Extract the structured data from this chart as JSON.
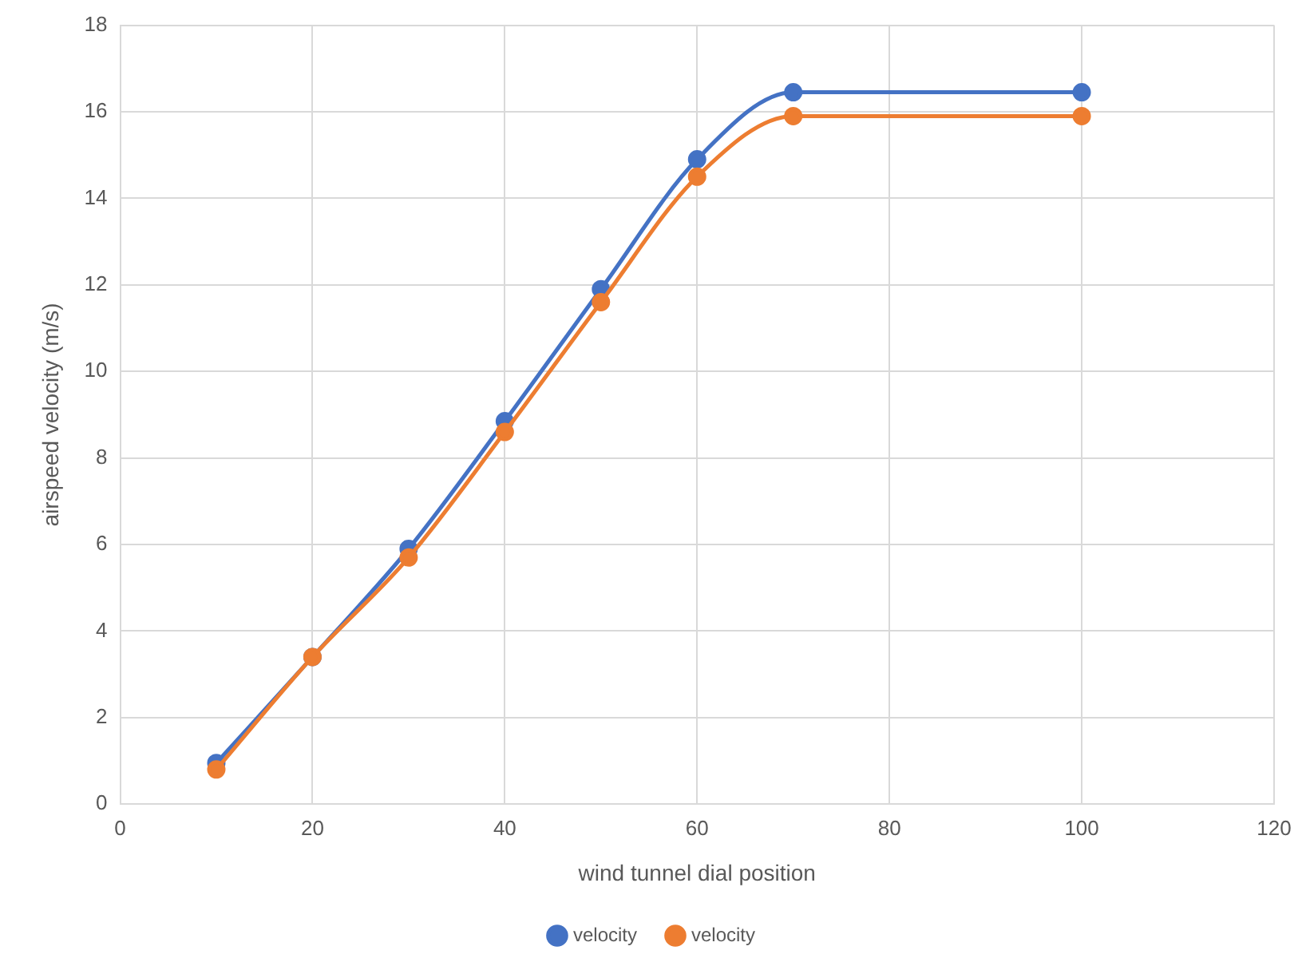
{
  "chart_data": {
    "type": "line",
    "xlabel": "wind tunnel dial position",
    "ylabel": "airspeed velocity (m/s)",
    "x": [
      10,
      20,
      30,
      40,
      50,
      60,
      70,
      100
    ],
    "series": [
      {
        "name": "velocity",
        "color": "#4472c4",
        "values": [
          0.95,
          3.4,
          5.9,
          8.85,
          11.9,
          14.9,
          16.45,
          16.45
        ]
      },
      {
        "name": "velocity",
        "color": "#ed7d31",
        "values": [
          0.8,
          3.4,
          5.7,
          8.6,
          11.6,
          14.5,
          15.9,
          15.9
        ]
      }
    ],
    "xlim": [
      0,
      120
    ],
    "xticks": [
      0,
      20,
      40,
      60,
      80,
      100,
      120
    ],
    "ylim": [
      0,
      18
    ],
    "yticks": [
      0,
      2,
      4,
      6,
      8,
      10,
      12,
      14,
      16,
      18
    ],
    "grid": true,
    "legend": "bottom",
    "marker": "circle",
    "line_style": "solid"
  }
}
